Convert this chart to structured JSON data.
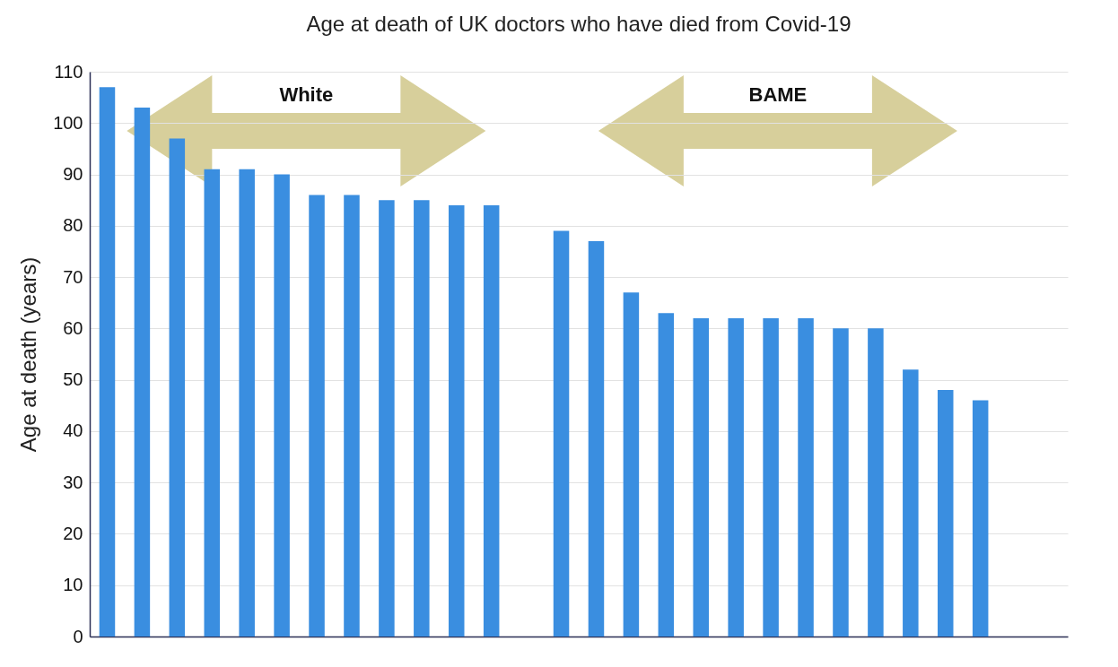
{
  "chart_data": {
    "type": "bar",
    "title": "Age at death of UK doctors who have died from Covid-19",
    "ylabel": "Age at death (years)",
    "categories": [
      null,
      null,
      null,
      null,
      null,
      null,
      null,
      null,
      null,
      null,
      null,
      null,
      null,
      null,
      null,
      null,
      null,
      null,
      null,
      null,
      null,
      null,
      null,
      null,
      null,
      null,
      null,
      null
    ],
    "values": [
      107,
      103,
      97,
      91,
      91,
      90,
      86,
      86,
      85,
      85,
      84,
      84,
      null,
      79,
      77,
      67,
      63,
      62,
      62,
      62,
      62,
      60,
      60,
      52,
      48,
      46,
      null,
      null
    ],
    "color": "#3a8ee0",
    "ylim": [
      0,
      110
    ],
    "yticks": [
      0,
      10,
      20,
      30,
      40,
      50,
      60,
      70,
      80,
      90,
      100,
      110
    ],
    "grid": "y",
    "tick_labels": "y",
    "annotations": [
      "White",
      "BAME"
    ]
  }
}
